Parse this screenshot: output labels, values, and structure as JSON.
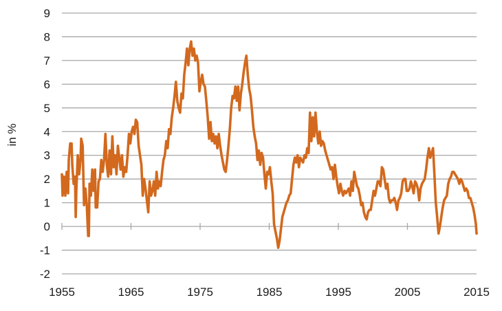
{
  "chart_data": {
    "type": "line",
    "ylabel": "in %",
    "xlim": [
      1955,
      2015
    ],
    "ylim": [
      -2,
      9
    ],
    "x_ticks": [
      1955,
      1965,
      1975,
      1985,
      1995,
      2005,
      2015
    ],
    "y_ticks": [
      -2,
      -1,
      0,
      1,
      2,
      3,
      4,
      5,
      6,
      7,
      8,
      9
    ],
    "grid": "horizontal",
    "colors": {
      "line": "#d2691e",
      "grid": "#a6a6a6",
      "axis": "#a6a6a6"
    },
    "series": [
      {
        "points": [
          [
            1955.0,
            2.2
          ],
          [
            1955.1,
            1.3
          ],
          [
            1955.3,
            2.1
          ],
          [
            1955.5,
            1.3
          ],
          [
            1955.7,
            2.3
          ],
          [
            1955.9,
            1.4
          ],
          [
            1956.0,
            2.8
          ],
          [
            1956.2,
            3.5
          ],
          [
            1956.4,
            3.5
          ],
          [
            1956.5,
            2.6
          ],
          [
            1956.7,
            1.8
          ],
          [
            1956.9,
            2.1
          ],
          [
            1957.0,
            0.4
          ],
          [
            1957.1,
            1.6
          ],
          [
            1957.3,
            3.0
          ],
          [
            1957.5,
            2.2
          ],
          [
            1957.7,
            2.8
          ],
          [
            1957.8,
            3.7
          ],
          [
            1958.0,
            3.4
          ],
          [
            1958.2,
            0.9
          ],
          [
            1958.4,
            1.6
          ],
          [
            1958.6,
            0.9
          ],
          [
            1958.8,
            -0.4
          ],
          [
            1958.9,
            -0.4
          ],
          [
            1959.0,
            1.8
          ],
          [
            1959.2,
            1.3
          ],
          [
            1959.4,
            2.4
          ],
          [
            1959.6,
            1.5
          ],
          [
            1959.8,
            2.4
          ],
          [
            1959.9,
            0.8
          ],
          [
            1960.1,
            0.8
          ],
          [
            1960.3,
            1.9
          ],
          [
            1960.5,
            2.0
          ],
          [
            1960.7,
            2.8
          ],
          [
            1960.9,
            2.3
          ],
          [
            1961.1,
            2.8
          ],
          [
            1961.3,
            3.9
          ],
          [
            1961.5,
            2.6
          ],
          [
            1961.7,
            2.1
          ],
          [
            1961.9,
            3.2
          ],
          [
            1962.1,
            2.2
          ],
          [
            1962.3,
            3.8
          ],
          [
            1962.5,
            2.5
          ],
          [
            1962.7,
            3.0
          ],
          [
            1962.9,
            2.2
          ],
          [
            1963.1,
            3.4
          ],
          [
            1963.3,
            2.9
          ],
          [
            1963.5,
            2.4
          ],
          [
            1963.7,
            3.0
          ],
          [
            1963.9,
            2.1
          ],
          [
            1964.1,
            2.5
          ],
          [
            1964.3,
            2.3
          ],
          [
            1964.5,
            3.0
          ],
          [
            1964.7,
            3.9
          ],
          [
            1964.9,
            3.5
          ],
          [
            1965.1,
            4.0
          ],
          [
            1965.3,
            4.2
          ],
          [
            1965.5,
            3.9
          ],
          [
            1965.7,
            4.5
          ],
          [
            1965.9,
            4.4
          ],
          [
            1966.1,
            3.4
          ],
          [
            1966.3,
            3.0
          ],
          [
            1966.5,
            2.6
          ],
          [
            1966.7,
            1.3
          ],
          [
            1966.9,
            2.0
          ],
          [
            1967.1,
            1.6
          ],
          [
            1967.3,
            1.1
          ],
          [
            1967.5,
            0.6
          ],
          [
            1967.7,
            1.9
          ],
          [
            1967.9,
            1.3
          ],
          [
            1968.1,
            1.5
          ],
          [
            1968.3,
            1.9
          ],
          [
            1968.5,
            1.3
          ],
          [
            1968.7,
            2.3
          ],
          [
            1968.9,
            1.6
          ],
          [
            1969.1,
            1.9
          ],
          [
            1969.3,
            1.7
          ],
          [
            1969.5,
            2.3
          ],
          [
            1969.7,
            2.8
          ],
          [
            1969.9,
            3.0
          ],
          [
            1970.1,
            3.6
          ],
          [
            1970.3,
            3.3
          ],
          [
            1970.5,
            4.1
          ],
          [
            1970.7,
            3.9
          ],
          [
            1970.9,
            4.6
          ],
          [
            1971.1,
            5.0
          ],
          [
            1971.3,
            5.5
          ],
          [
            1971.5,
            6.1
          ],
          [
            1971.7,
            5.3
          ],
          [
            1971.9,
            5.0
          ],
          [
            1972.1,
            4.8
          ],
          [
            1972.3,
            5.6
          ],
          [
            1972.5,
            5.4
          ],
          [
            1972.7,
            6.4
          ],
          [
            1972.9,
            6.9
          ],
          [
            1973.1,
            7.5
          ],
          [
            1973.3,
            6.8
          ],
          [
            1973.5,
            7.5
          ],
          [
            1973.7,
            7.8
          ],
          [
            1973.9,
            7.2
          ],
          [
            1974.1,
            7.5
          ],
          [
            1974.3,
            7.0
          ],
          [
            1974.5,
            7.2
          ],
          [
            1974.7,
            6.9
          ],
          [
            1974.9,
            5.7
          ],
          [
            1975.1,
            6.1
          ],
          [
            1975.3,
            6.4
          ],
          [
            1975.5,
            6.0
          ],
          [
            1975.7,
            5.9
          ],
          [
            1975.9,
            5.3
          ],
          [
            1976.1,
            4.6
          ],
          [
            1976.3,
            3.7
          ],
          [
            1976.5,
            4.4
          ],
          [
            1976.7,
            3.6
          ],
          [
            1976.9,
            3.9
          ],
          [
            1977.1,
            3.5
          ],
          [
            1977.3,
            3.8
          ],
          [
            1977.5,
            3.3
          ],
          [
            1977.7,
            3.9
          ],
          [
            1977.9,
            3.4
          ],
          [
            1978.1,
            3.0
          ],
          [
            1978.3,
            2.7
          ],
          [
            1978.5,
            2.4
          ],
          [
            1978.7,
            2.3
          ],
          [
            1978.9,
            2.8
          ],
          [
            1979.1,
            3.4
          ],
          [
            1979.3,
            4.1
          ],
          [
            1979.5,
            5.0
          ],
          [
            1979.7,
            5.5
          ],
          [
            1979.9,
            5.4
          ],
          [
            1980.1,
            5.9
          ],
          [
            1980.3,
            5.3
          ],
          [
            1980.5,
            5.9
          ],
          [
            1980.7,
            4.9
          ],
          [
            1980.9,
            5.6
          ],
          [
            1981.1,
            6.0
          ],
          [
            1981.3,
            6.5
          ],
          [
            1981.5,
            6.9
          ],
          [
            1981.7,
            7.2
          ],
          [
            1981.9,
            6.4
          ],
          [
            1982.1,
            5.8
          ],
          [
            1982.3,
            5.5
          ],
          [
            1982.5,
            4.9
          ],
          [
            1982.7,
            4.2
          ],
          [
            1982.9,
            3.8
          ],
          [
            1983.1,
            3.5
          ],
          [
            1983.3,
            2.8
          ],
          [
            1983.5,
            3.2
          ],
          [
            1983.7,
            2.6
          ],
          [
            1983.9,
            3.1
          ],
          [
            1984.1,
            2.9
          ],
          [
            1984.3,
            2.2
          ],
          [
            1984.5,
            1.6
          ],
          [
            1984.7,
            2.3
          ],
          [
            1984.9,
            2.2
          ],
          [
            1985.1,
            2.5
          ],
          [
            1985.3,
            1.9
          ],
          [
            1985.5,
            1.4
          ],
          [
            1985.7,
            0.1
          ],
          [
            1985.9,
            -0.2
          ],
          [
            1986.1,
            -0.5
          ],
          [
            1986.3,
            -0.9
          ],
          [
            1986.5,
            -0.6
          ],
          [
            1986.7,
            -0.1
          ],
          [
            1986.9,
            0.4
          ],
          [
            1987.1,
            0.6
          ],
          [
            1987.3,
            0.8
          ],
          [
            1987.5,
            1.0
          ],
          [
            1987.7,
            1.1
          ],
          [
            1987.9,
            1.3
          ],
          [
            1988.1,
            1.4
          ],
          [
            1988.3,
            2.0
          ],
          [
            1988.5,
            2.6
          ],
          [
            1988.7,
            2.9
          ],
          [
            1988.9,
            2.7
          ],
          [
            1989.1,
            3.0
          ],
          [
            1989.3,
            2.5
          ],
          [
            1989.5,
            2.9
          ],
          [
            1989.7,
            2.8
          ],
          [
            1989.9,
            2.7
          ],
          [
            1990.1,
            3.0
          ],
          [
            1990.3,
            2.9
          ],
          [
            1990.5,
            3.3
          ],
          [
            1990.7,
            3.1
          ],
          [
            1990.9,
            4.8
          ],
          [
            1991.1,
            3.6
          ],
          [
            1991.3,
            4.6
          ],
          [
            1991.5,
            3.8
          ],
          [
            1991.7,
            4.8
          ],
          [
            1991.9,
            4.0
          ],
          [
            1992.1,
            3.5
          ],
          [
            1992.3,
            4.0
          ],
          [
            1992.5,
            3.4
          ],
          [
            1992.7,
            3.6
          ],
          [
            1992.9,
            3.5
          ],
          [
            1993.1,
            3.2
          ],
          [
            1993.3,
            3.0
          ],
          [
            1993.5,
            2.8
          ],
          [
            1993.7,
            2.6
          ],
          [
            1993.9,
            2.4
          ],
          [
            1994.1,
            2.5
          ],
          [
            1994.3,
            2.0
          ],
          [
            1994.5,
            2.6
          ],
          [
            1994.7,
            2.1
          ],
          [
            1994.9,
            1.7
          ],
          [
            1995.1,
            1.4
          ],
          [
            1995.3,
            1.8
          ],
          [
            1995.5,
            1.5
          ],
          [
            1995.7,
            1.3
          ],
          [
            1995.9,
            1.5
          ],
          [
            1996.1,
            1.4
          ],
          [
            1996.3,
            1.5
          ],
          [
            1996.5,
            1.6
          ],
          [
            1996.7,
            1.3
          ],
          [
            1996.9,
            1.9
          ],
          [
            1997.1,
            1.5
          ],
          [
            1997.3,
            2.3
          ],
          [
            1997.5,
            2.0
          ],
          [
            1997.7,
            1.7
          ],
          [
            1997.9,
            1.6
          ],
          [
            1998.1,
            1.3
          ],
          [
            1998.3,
            0.9
          ],
          [
            1998.5,
            1.0
          ],
          [
            1998.7,
            0.6
          ],
          [
            1998.9,
            0.4
          ],
          [
            1999.1,
            0.3
          ],
          [
            1999.3,
            0.6
          ],
          [
            1999.5,
            0.7
          ],
          [
            1999.7,
            0.7
          ],
          [
            1999.9,
            1.1
          ],
          [
            2000.1,
            1.5
          ],
          [
            2000.3,
            1.3
          ],
          [
            2000.5,
            1.6
          ],
          [
            2000.7,
            1.9
          ],
          [
            2000.9,
            1.9
          ],
          [
            2001.1,
            1.7
          ],
          [
            2001.3,
            2.5
          ],
          [
            2001.5,
            2.4
          ],
          [
            2001.7,
            2.0
          ],
          [
            2001.9,
            1.6
          ],
          [
            2002.1,
            1.8
          ],
          [
            2002.3,
            1.2
          ],
          [
            2002.5,
            1.0
          ],
          [
            2002.7,
            1.1
          ],
          [
            2002.9,
            1.1
          ],
          [
            2003.1,
            1.2
          ],
          [
            2003.3,
            1.0
          ],
          [
            2003.5,
            0.7
          ],
          [
            2003.7,
            1.1
          ],
          [
            2003.9,
            1.2
          ],
          [
            2004.1,
            1.4
          ],
          [
            2004.3,
            1.9
          ],
          [
            2004.5,
            2.0
          ],
          [
            2004.7,
            2.0
          ],
          [
            2004.9,
            1.5
          ],
          [
            2005.1,
            1.5
          ],
          [
            2005.3,
            1.6
          ],
          [
            2005.5,
            1.9
          ],
          [
            2005.7,
            1.7
          ],
          [
            2005.9,
            1.4
          ],
          [
            2006.1,
            1.9
          ],
          [
            2006.3,
            1.8
          ],
          [
            2006.5,
            1.6
          ],
          [
            2006.7,
            1.1
          ],
          [
            2006.9,
            1.6
          ],
          [
            2007.1,
            1.8
          ],
          [
            2007.3,
            1.9
          ],
          [
            2007.5,
            2.0
          ],
          [
            2007.7,
            2.4
          ],
          [
            2007.9,
            2.9
          ],
          [
            2008.1,
            3.3
          ],
          [
            2008.3,
            2.9
          ],
          [
            2008.5,
            3.1
          ],
          [
            2008.7,
            3.3
          ],
          [
            2008.9,
            2.2
          ],
          [
            2009.1,
            1.0
          ],
          [
            2009.3,
            0.4
          ],
          [
            2009.5,
            -0.3
          ],
          [
            2009.7,
            0.0
          ],
          [
            2009.9,
            0.4
          ],
          [
            2010.1,
            0.8
          ],
          [
            2010.3,
            1.1
          ],
          [
            2010.5,
            1.2
          ],
          [
            2010.7,
            1.3
          ],
          [
            2010.9,
            1.8
          ],
          [
            2011.1,
            2.0
          ],
          [
            2011.3,
            2.1
          ],
          [
            2011.5,
            2.3
          ],
          [
            2011.7,
            2.3
          ],
          [
            2011.9,
            2.2
          ],
          [
            2012.1,
            2.1
          ],
          [
            2012.3,
            2.0
          ],
          [
            2012.5,
            1.8
          ],
          [
            2012.7,
            2.0
          ],
          [
            2012.9,
            1.9
          ],
          [
            2013.1,
            1.7
          ],
          [
            2013.3,
            1.5
          ],
          [
            2013.5,
            1.6
          ],
          [
            2013.7,
            1.5
          ],
          [
            2013.9,
            1.2
          ],
          [
            2014.1,
            1.2
          ],
          [
            2014.3,
            1.0
          ],
          [
            2014.5,
            0.8
          ],
          [
            2014.7,
            0.5
          ],
          [
            2014.9,
            0.1
          ],
          [
            2015.0,
            -0.3
          ]
        ]
      }
    ]
  }
}
